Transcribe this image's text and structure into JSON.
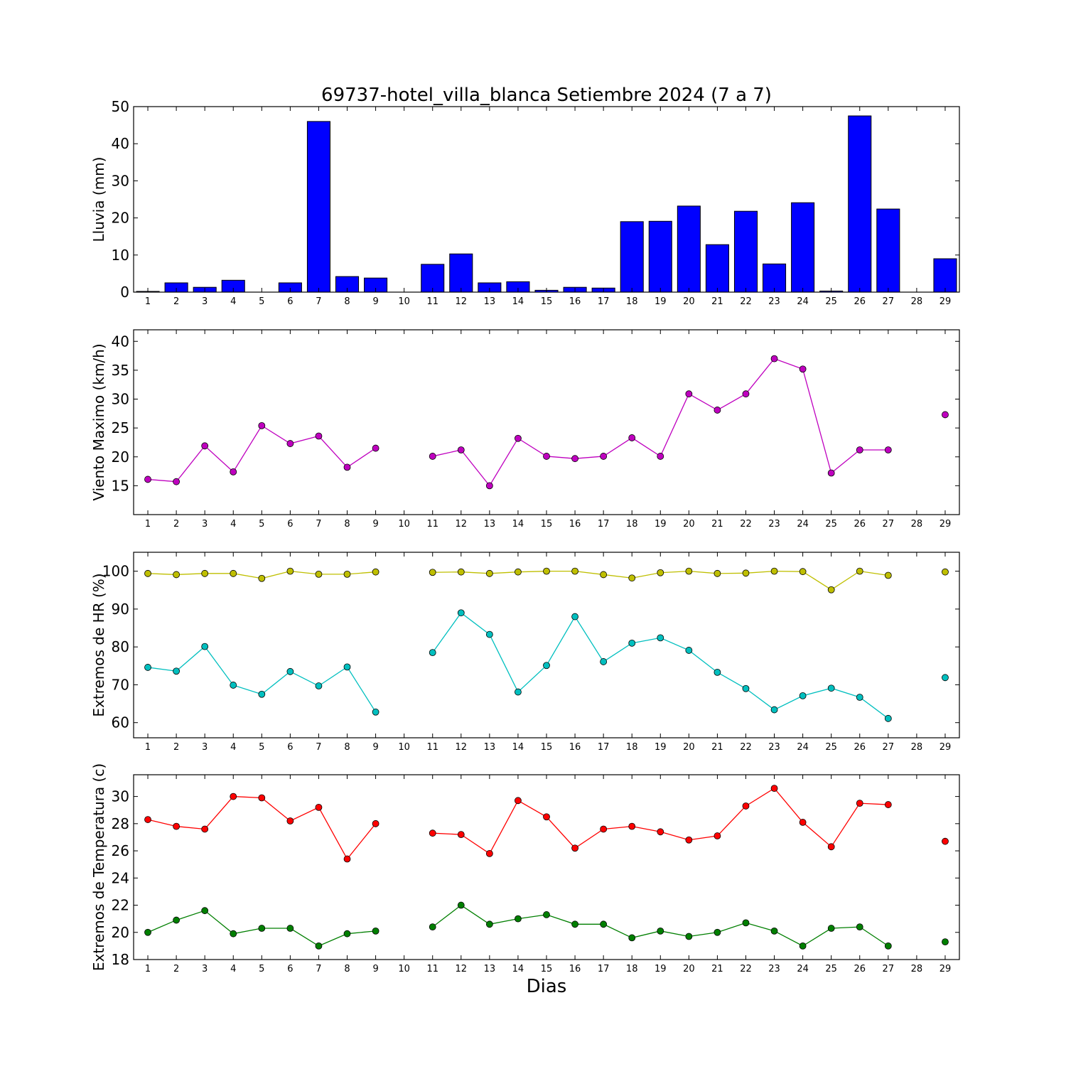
{
  "title": "69737-hotel_villa_blanca Setiembre 2024  (7 a 7)",
  "xlabel": "Dias",
  "days": [
    1,
    2,
    3,
    4,
    5,
    6,
    7,
    8,
    9,
    10,
    11,
    12,
    13,
    14,
    15,
    16,
    17,
    18,
    19,
    20,
    21,
    22,
    23,
    24,
    25,
    26,
    27,
    28,
    29
  ],
  "chart_data": [
    {
      "type": "bar",
      "ylabel": "Lluvia (mm)",
      "ylim": [
        0,
        50
      ],
      "yticks": [
        0,
        10,
        20,
        30,
        40,
        50
      ],
      "colors": {
        "bar": "#0000ff"
      },
      "series": [
        {
          "values": [
            0.2,
            2.5,
            1.3,
            3.2,
            0.0,
            2.5,
            46.0,
            4.2,
            3.8,
            0.0,
            7.5,
            10.3,
            2.5,
            2.8,
            0.5,
            1.3,
            1.1,
            19.0,
            19.1,
            23.2,
            12.8,
            21.8,
            7.6,
            24.1,
            0.3,
            47.5,
            22.4,
            0.0,
            9.0
          ]
        }
      ]
    },
    {
      "type": "line",
      "ylabel": "Viento Maximo (km/h)",
      "ylim": [
        10,
        42
      ],
      "yticks": [
        15,
        20,
        25,
        30,
        35,
        40
      ],
      "series": [
        {
          "color": "#bf00bf",
          "values": [
            16.1,
            15.7,
            21.9,
            17.4,
            25.4,
            22.3,
            23.6,
            18.2,
            21.5,
            null,
            20.1,
            21.2,
            15.0,
            23.2,
            20.1,
            19.7,
            20.1,
            23.3,
            20.1,
            30.9,
            28.1,
            30.9,
            37.0,
            35.2,
            17.2,
            21.2,
            21.2,
            null,
            27.3
          ]
        }
      ]
    },
    {
      "type": "line",
      "ylabel": "Extremos de HR (%)",
      "ylim": [
        56,
        105
      ],
      "yticks": [
        60,
        70,
        80,
        90,
        100
      ],
      "series": [
        {
          "color": "#bfbf00",
          "values": [
            99.4,
            99.1,
            99.4,
            99.4,
            98.1,
            100.0,
            99.2,
            99.2,
            99.8,
            null,
            99.7,
            99.8,
            99.4,
            99.8,
            100.0,
            100.0,
            99.1,
            98.2,
            99.6,
            100.0,
            99.4,
            99.5,
            100.0,
            99.9,
            95.1,
            100.0,
            98.9,
            null,
            99.8
          ]
        },
        {
          "color": "#00bfbf",
          "values": [
            74.6,
            73.6,
            80.1,
            69.9,
            67.5,
            73.5,
            69.7,
            74.7,
            62.8,
            null,
            78.5,
            89.0,
            83.3,
            68.1,
            75.1,
            88.0,
            76.1,
            81.0,
            82.4,
            79.1,
            73.3,
            69.0,
            63.4,
            67.1,
            69.1,
            66.7,
            61.1,
            null,
            71.9
          ]
        }
      ]
    },
    {
      "type": "line",
      "ylabel": "Extremos de Temperatura (c)",
      "ylim": [
        18,
        31.6
      ],
      "yticks": [
        18,
        20,
        22,
        24,
        26,
        28,
        30
      ],
      "series": [
        {
          "color": "#ff0000",
          "values": [
            28.3,
            27.8,
            27.6,
            30.0,
            29.9,
            28.2,
            29.2,
            25.4,
            28.0,
            null,
            27.3,
            27.2,
            25.8,
            29.7,
            28.5,
            26.2,
            27.6,
            27.8,
            27.4,
            26.8,
            27.1,
            29.3,
            30.6,
            28.1,
            26.3,
            29.5,
            29.4,
            null,
            26.7
          ]
        },
        {
          "color": "#007f00",
          "values": [
            20.0,
            20.9,
            21.6,
            19.9,
            20.3,
            20.3,
            19.0,
            19.9,
            20.1,
            null,
            20.4,
            22.0,
            20.6,
            21.0,
            21.3,
            20.6,
            20.6,
            19.6,
            20.1,
            19.7,
            20.0,
            20.7,
            20.1,
            19.0,
            20.3,
            20.4,
            19.0,
            null,
            19.3
          ]
        }
      ]
    }
  ]
}
